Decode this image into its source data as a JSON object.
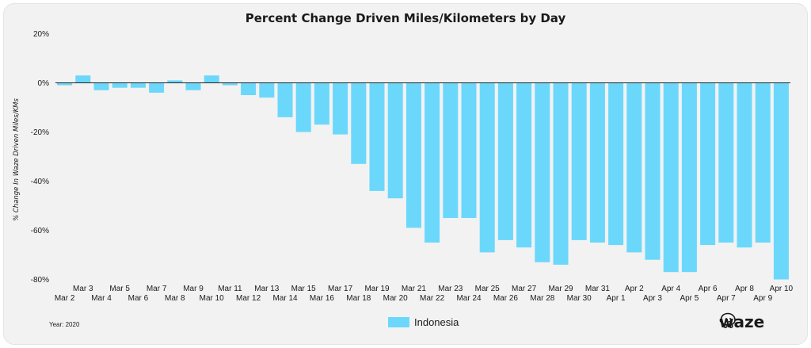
{
  "chart_data": {
    "type": "bar",
    "title": "Percent Change Driven Miles/Kilometers by Day",
    "ylabel": "% Change In Waze Driven Miles/KMs",
    "xlabel": "",
    "ylim": [
      -80,
      20
    ],
    "yticks": [
      20,
      0,
      -20,
      -40,
      -60,
      -80
    ],
    "ytick_labels": [
      "20%",
      "0%",
      "-20%",
      "-40%",
      "-60%",
      "-80%"
    ],
    "grid": false,
    "legend_position": "bottom",
    "bar_color": "#6bd8fb",
    "categories": [
      "Mar 2",
      "Mar 3",
      "Mar 4",
      "Mar 5",
      "Mar 6",
      "Mar 7",
      "Mar 8",
      "Mar 9",
      "Mar 10",
      "Mar 11",
      "Mar 12",
      "Mar 13",
      "Mar 14",
      "Mar 15",
      "Mar 16",
      "Mar 17",
      "Mar 18",
      "Mar 19",
      "Mar 20",
      "Mar 21",
      "Mar 22",
      "Mar 23",
      "Mar 24",
      "Mar 25",
      "Mar 26",
      "Mar 27",
      "Mar 28",
      "Mar 29",
      "Mar 30",
      "Mar 31",
      "Apr 1",
      "Apr 2",
      "Apr 3",
      "Apr 4",
      "Apr 5",
      "Apr 6",
      "Apr 7",
      "Apr 8",
      "Apr 9",
      "Apr 10"
    ],
    "series": [
      {
        "name": "Indonesia",
        "values": [
          -1,
          3,
          -3,
          -2,
          -2,
          -4,
          1,
          -3,
          3,
          -1,
          -5,
          -6,
          -14,
          -20,
          -17,
          -21,
          -33,
          -44,
          -47,
          -59,
          -65,
          -55,
          -55,
          -69,
          -64,
          -67,
          -73,
          -74,
          -64,
          -65,
          -66,
          -69,
          -72,
          -77,
          -77,
          -66,
          -65,
          -67,
          -65,
          -80
        ]
      }
    ]
  },
  "footnote": "Year: 2020",
  "legend": {
    "label": "Indonesia"
  },
  "brand": {
    "name": "waze"
  }
}
